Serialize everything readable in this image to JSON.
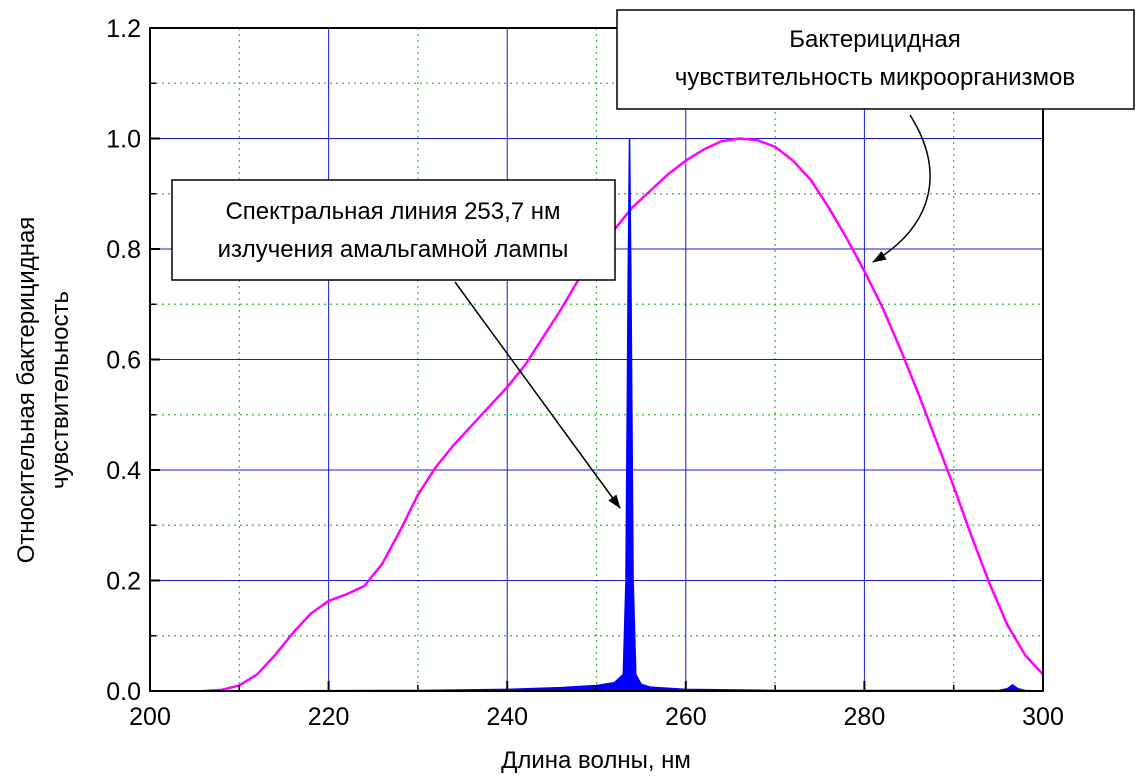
{
  "chart_data": {
    "type": "line",
    "title": "",
    "xlabel": "Длина волны, нм",
    "ylabel_lines": [
      "Относительная бактерицидная",
      "чувствительность"
    ],
    "xlim": [
      200,
      300
    ],
    "ylim": [
      0,
      1.2
    ],
    "x_ticks": [
      200,
      220,
      240,
      260,
      280,
      300
    ],
    "y_ticks": [
      0.0,
      0.2,
      0.4,
      0.6,
      0.8,
      1.0,
      1.2
    ],
    "x_tick_labels": [
      "200",
      "220",
      "240",
      "260",
      "280",
      "300"
    ],
    "y_tick_labels": [
      "0.0",
      "0.2",
      "0.4",
      "0.6",
      "0.8",
      "1.0",
      "1.2"
    ],
    "grid": {
      "major": true,
      "minor": true,
      "major_color": "#1a1acc",
      "minor_color": "#33bb33"
    },
    "series": [
      {
        "color": "#ff00ff",
        "kind": "line",
        "points": [
          [
            206,
            0
          ],
          [
            208,
            0.002
          ],
          [
            210,
            0.01
          ],
          [
            212,
            0.03
          ],
          [
            214,
            0.065
          ],
          [
            216,
            0.105
          ],
          [
            218,
            0.14
          ],
          [
            220,
            0.163
          ],
          [
            222,
            0.175
          ],
          [
            224,
            0.19
          ],
          [
            226,
            0.23
          ],
          [
            228,
            0.29
          ],
          [
            230,
            0.355
          ],
          [
            232,
            0.405
          ],
          [
            234,
            0.445
          ],
          [
            236,
            0.48
          ],
          [
            238,
            0.515
          ],
          [
            240,
            0.55
          ],
          [
            242,
            0.59
          ],
          [
            244,
            0.64
          ],
          [
            246,
            0.69
          ],
          [
            248,
            0.745
          ],
          [
            250,
            0.795
          ],
          [
            252,
            0.835
          ],
          [
            254,
            0.875
          ],
          [
            256,
            0.905
          ],
          [
            258,
            0.935
          ],
          [
            260,
            0.96
          ],
          [
            262,
            0.98
          ],
          [
            264,
            0.995
          ],
          [
            266,
            1.0
          ],
          [
            268,
            0.997
          ],
          [
            270,
            0.985
          ],
          [
            272,
            0.96
          ],
          [
            274,
            0.925
          ],
          [
            276,
            0.875
          ],
          [
            278,
            0.82
          ],
          [
            280,
            0.76
          ],
          [
            282,
            0.695
          ],
          [
            284,
            0.62
          ],
          [
            286,
            0.54
          ],
          [
            288,
            0.455
          ],
          [
            290,
            0.37
          ],
          [
            292,
            0.28
          ],
          [
            294,
            0.195
          ],
          [
            296,
            0.12
          ],
          [
            298,
            0.065
          ],
          [
            300,
            0.03
          ]
        ]
      },
      {
        "color": "#0000ff",
        "kind": "filled",
        "points": [
          [
            206,
            0
          ],
          [
            230,
            0.001
          ],
          [
            240,
            0.003
          ],
          [
            246,
            0.006
          ],
          [
            250,
            0.01
          ],
          [
            252,
            0.015
          ],
          [
            253,
            0.03
          ],
          [
            253.3,
            0.2
          ],
          [
            253.55,
            0.75
          ],
          [
            253.7,
            1.0
          ],
          [
            253.85,
            0.75
          ],
          [
            254.1,
            0.2
          ],
          [
            254.4,
            0.03
          ],
          [
            255,
            0.012
          ],
          [
            256,
            0.007
          ],
          [
            260,
            0.003
          ],
          [
            265,
            0.002
          ],
          [
            270,
            0.001
          ],
          [
            280,
            0.001
          ],
          [
            295,
            0.001
          ],
          [
            296,
            0.004
          ],
          [
            296.6,
            0.011
          ],
          [
            297.2,
            0.004
          ],
          [
            298,
            0.001
          ],
          [
            300,
            0
          ]
        ]
      }
    ],
    "annotations": [
      {
        "lines": [
          "Бактерицидная",
          "чувствительность микроорганизмов"
        ],
        "target": [
          278.3,
          0.82
        ]
      },
      {
        "lines": [
          "Спектральная линия 253,7 нм",
          "излучения амальгамной лампы"
        ],
        "target": [
          253.3,
          0.4
        ]
      }
    ]
  }
}
